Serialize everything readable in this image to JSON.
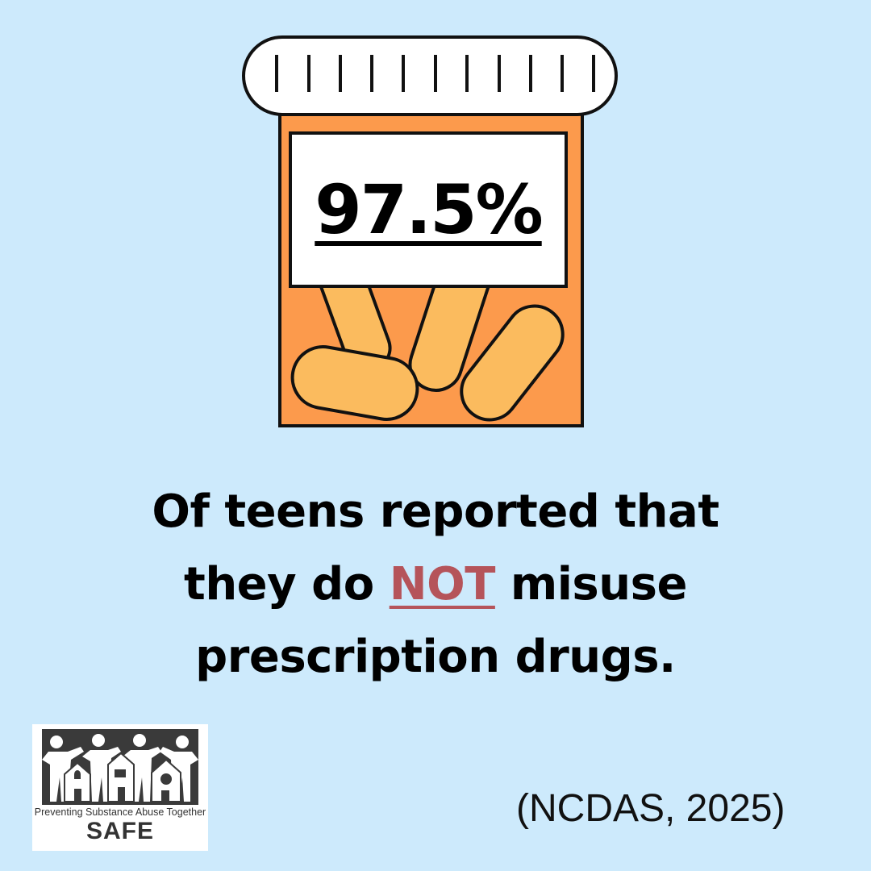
{
  "stat": {
    "value": "97.5%"
  },
  "headline": {
    "line1": "Of teens reported that",
    "line2_before": "they do ",
    "line2_emphasis": "NOT",
    "line2_after": " misuse",
    "line3": "prescription drugs."
  },
  "logo": {
    "tagline": "Preventing Substance Abuse Together",
    "name": "SAFE"
  },
  "citation": "(NCDAS, 2025)",
  "colors": {
    "background": "#cdeafc",
    "bottle": "#fc9a4c",
    "pill": "#fbbb5e",
    "emphasis": "#b5545a"
  },
  "icons": [
    "pill-bottle-icon",
    "pill-icon",
    "people-houses-icon"
  ]
}
